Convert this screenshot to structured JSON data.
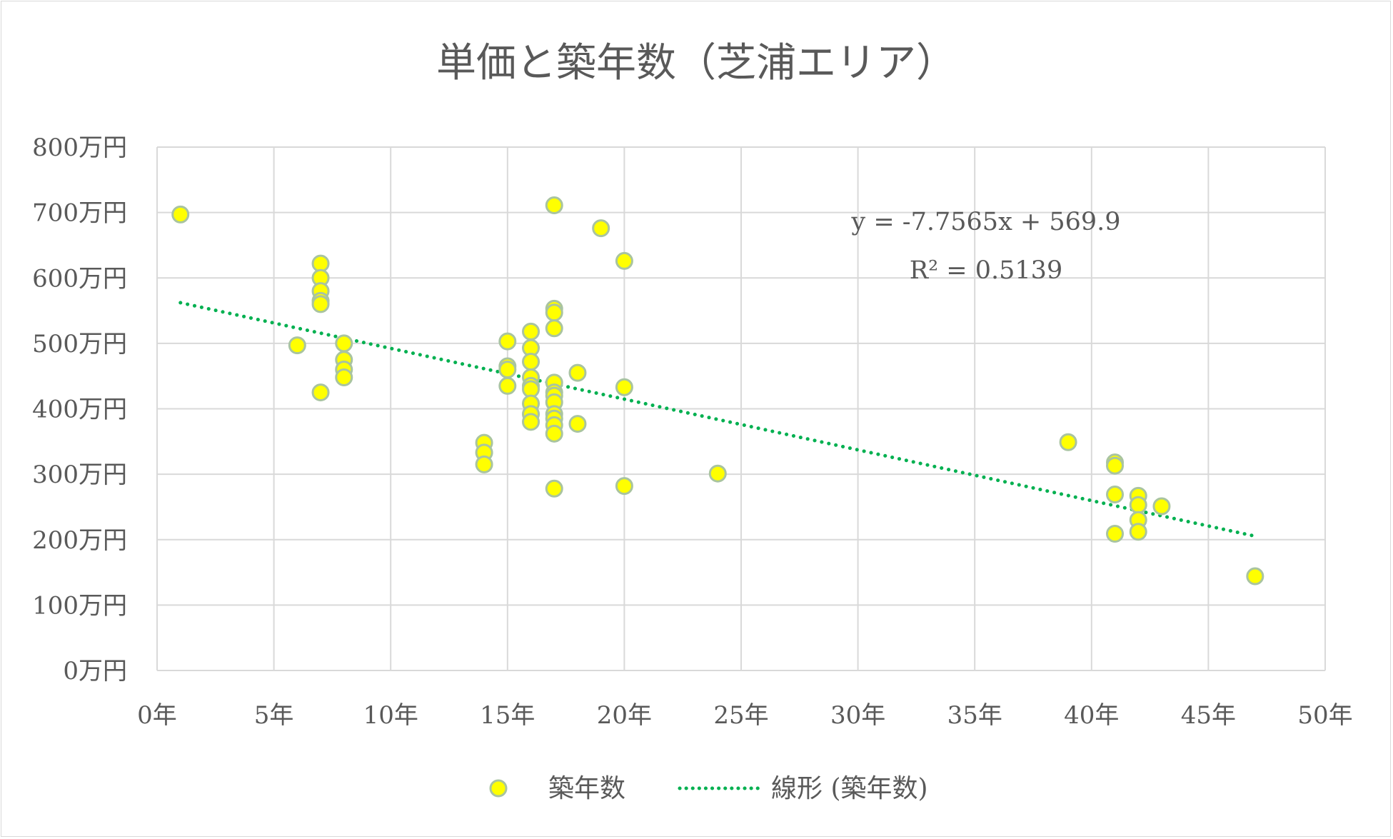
{
  "chart_data": {
    "type": "scatter",
    "title": "単価と築年数（芝浦エリア）",
    "xlabel": "",
    "ylabel": "",
    "xlim": [
      0,
      50
    ],
    "ylim": [
      0,
      800
    ],
    "x_ticks": [
      0,
      5,
      10,
      15,
      20,
      25,
      30,
      35,
      40,
      45,
      50
    ],
    "x_tick_labels": [
      "0年",
      "5年",
      "10年",
      "15年",
      "20年",
      "25年",
      "30年",
      "35年",
      "40年",
      "45年",
      "50年"
    ],
    "y_ticks": [
      0,
      100,
      200,
      300,
      400,
      500,
      600,
      700,
      800
    ],
    "y_tick_labels": [
      "0万円",
      "100万円",
      "200万円",
      "300万円",
      "400万円",
      "500万円",
      "600万円",
      "700万円",
      "800万円"
    ],
    "grid": true,
    "legend_position": "bottom",
    "series": [
      {
        "name": "築年数",
        "color": "#ffff00",
        "edge_color": "#a9c4a0",
        "points": [
          [
            1,
            697
          ],
          [
            6,
            497
          ],
          [
            7,
            622
          ],
          [
            7,
            600
          ],
          [
            7,
            580
          ],
          [
            7,
            565
          ],
          [
            7,
            560
          ],
          [
            7,
            425
          ],
          [
            8,
            500
          ],
          [
            8,
            475
          ],
          [
            8,
            460
          ],
          [
            8,
            448
          ],
          [
            14,
            348
          ],
          [
            14,
            333
          ],
          [
            14,
            315
          ],
          [
            15,
            503
          ],
          [
            15,
            465
          ],
          [
            15,
            460
          ],
          [
            15,
            435
          ],
          [
            16,
            518
          ],
          [
            16,
            493
          ],
          [
            16,
            472
          ],
          [
            16,
            448
          ],
          [
            16,
            435
          ],
          [
            16,
            430
          ],
          [
            16,
            408
          ],
          [
            16,
            392
          ],
          [
            16,
            380
          ],
          [
            17,
            711
          ],
          [
            17,
            553
          ],
          [
            17,
            547
          ],
          [
            17,
            523
          ],
          [
            17,
            440
          ],
          [
            17,
            425
          ],
          [
            17,
            420
          ],
          [
            17,
            410
          ],
          [
            17,
            392
          ],
          [
            17,
            385
          ],
          [
            17,
            375
          ],
          [
            17,
            362
          ],
          [
            17,
            278
          ],
          [
            18,
            455
          ],
          [
            18,
            377
          ],
          [
            19,
            676
          ],
          [
            20,
            626
          ],
          [
            20,
            433
          ],
          [
            20,
            282
          ],
          [
            24,
            301
          ],
          [
            39,
            349
          ],
          [
            41,
            318
          ],
          [
            41,
            313
          ],
          [
            41,
            269
          ],
          [
            41,
            209
          ],
          [
            42,
            267
          ],
          [
            42,
            253
          ],
          [
            42,
            230
          ],
          [
            42,
            212
          ],
          [
            43,
            251
          ],
          [
            47,
            144
          ]
        ]
      }
    ],
    "trendline": {
      "name": "線形 (築年数)",
      "type": "linear",
      "slope": -7.7565,
      "intercept": 569.9,
      "x_range": [
        1,
        47
      ],
      "color": "#00b050",
      "style": "dotted",
      "equation_label": "y = -7.7565x + 569.9",
      "r2_label": "R² = 0.5139"
    }
  }
}
